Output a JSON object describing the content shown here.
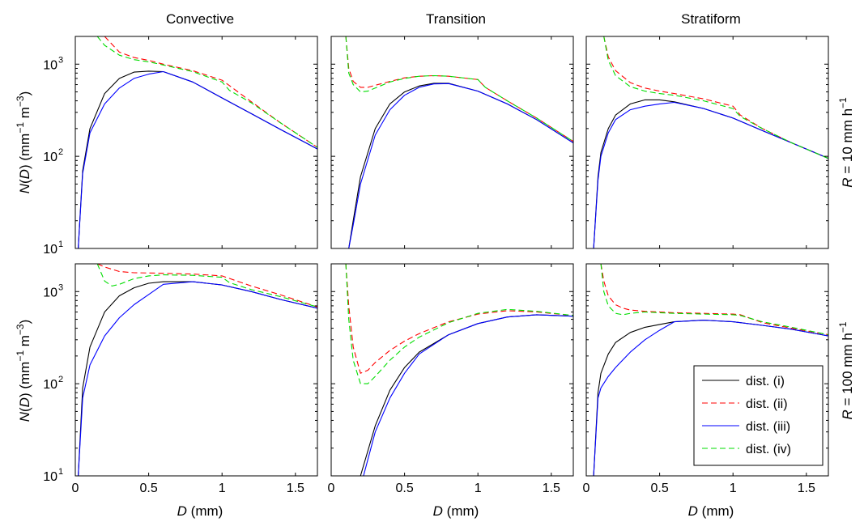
{
  "figure": {
    "columns": [
      "Convective",
      "Transition",
      "Stratiform"
    ],
    "rows": [
      {
        "label_italic": "R",
        "label_pre": " = 10 mm h",
        "label_sup": "−1"
      },
      {
        "label_italic": "R",
        "label_pre": " = 100 mm h",
        "label_sup": "−1"
      }
    ],
    "ylabel": {
      "italic_n": "N",
      "paren_open": "(",
      "italic_d": "D",
      "rest": ") (mm",
      "sup1": "−1",
      "mid": " m",
      "sup2": "−3",
      "close": ")"
    },
    "xlabel": {
      "italic": "D",
      "rest": " (mm)"
    },
    "x_ticks": [
      0,
      0.5,
      1,
      1.5
    ],
    "x_tick_labels": [
      "0",
      "0.5",
      "1",
      "1.5"
    ],
    "y_tick_base": "10",
    "y_tick_exps": [
      "1",
      "2",
      "3"
    ]
  },
  "chart_data": {
    "type": "line",
    "xlim": [
      0,
      1.65
    ],
    "ylim": [
      10,
      2000
    ],
    "yscale": "log",
    "grid": false,
    "legend_position": "bottom-right of Stratiform, R = 100 mm h−1 panel",
    "legend": [
      {
        "label": "dist. (i)",
        "color": "#000000",
        "dash": "solid"
      },
      {
        "label": "dist. (ii)",
        "color": "#ff0000",
        "dash": "dashed"
      },
      {
        "label": "dist. (iii)",
        "color": "#0000ff",
        "dash": "solid"
      },
      {
        "label": "dist. (iv)",
        "color": "#00dd00",
        "dash": "dashed"
      }
    ],
    "panels": [
      {
        "regime": "Convective",
        "R": "10 mm h−1",
        "series": [
          {
            "name": "dist. (i)",
            "x": [
              0.02,
              0.05,
              0.1,
              0.2,
              0.3,
              0.4,
              0.5,
              0.6,
              0.8,
              1.0,
              1.2,
              1.4,
              1.65
            ],
            "y": [
              10,
              70,
              200,
              480,
              700,
              820,
              840,
              830,
              640,
              430,
              290,
              195,
              120
            ]
          },
          {
            "name": "dist. (ii)",
            "x": [
              0.2,
              0.3,
              0.4,
              0.5,
              0.6,
              0.8,
              1.0,
              1.2,
              1.4,
              1.65
            ],
            "y": [
              2000,
              1350,
              1180,
              1100,
              1000,
              850,
              670,
              390,
              230,
              125
            ]
          },
          {
            "name": "dist. (iii)",
            "x": [
              0.02,
              0.05,
              0.1,
              0.2,
              0.3,
              0.4,
              0.5,
              0.6,
              0.8,
              1.0,
              1.2,
              1.4,
              1.65
            ],
            "y": [
              10,
              65,
              180,
              370,
              550,
              700,
              780,
              830,
              640,
              430,
              290,
              195,
              120
            ]
          },
          {
            "name": "dist. (iv)",
            "x": [
              0.15,
              0.2,
              0.3,
              0.4,
              0.5,
              0.6,
              0.8,
              1.0,
              1.05,
              1.2,
              1.4,
              1.65
            ],
            "y": [
              2000,
              1600,
              1250,
              1120,
              1060,
              980,
              830,
              640,
              520,
              380,
              230,
              125
            ]
          }
        ]
      },
      {
        "regime": "Transition",
        "R": "10 mm h−1",
        "series": [
          {
            "name": "dist. (i)",
            "x": [
              0.12,
              0.15,
              0.2,
              0.3,
              0.4,
              0.5,
              0.6,
              0.7,
              0.8,
              1.0,
              1.2,
              1.4,
              1.65
            ],
            "y": [
              10,
              20,
              60,
              200,
              370,
              500,
              580,
              620,
              620,
              510,
              370,
              250,
              140
            ]
          },
          {
            "name": "dist. (ii)",
            "x": [
              0.1,
              0.12,
              0.15,
              0.2,
              0.25,
              0.3,
              0.4,
              0.5,
              0.6,
              0.7,
              0.8,
              1.0,
              1.05,
              1.2,
              1.4,
              1.65
            ],
            "y": [
              2000,
              900,
              650,
              560,
              560,
              590,
              650,
              710,
              740,
              750,
              740,
              680,
              560,
              400,
              260,
              145
            ]
          },
          {
            "name": "dist. (iii)",
            "x": [
              0.12,
              0.15,
              0.2,
              0.3,
              0.4,
              0.5,
              0.6,
              0.7,
              0.8,
              1.0,
              1.2,
              1.4,
              1.65
            ],
            "y": [
              10,
              18,
              50,
              170,
              320,
              460,
              560,
              610,
              615,
              510,
              370,
              250,
              140
            ]
          },
          {
            "name": "dist. (iv)",
            "x": [
              0.1,
              0.12,
              0.15,
              0.2,
              0.25,
              0.3,
              0.4,
              0.5,
              0.6,
              0.7,
              0.8,
              1.0,
              1.05,
              1.2,
              1.4,
              1.65
            ],
            "y": [
              2000,
              800,
              600,
              500,
              510,
              550,
              640,
              700,
              740,
              750,
              740,
              680,
              560,
              400,
              260,
              145
            ]
          }
        ]
      },
      {
        "regime": "Stratiform",
        "R": "10 mm h−1",
        "series": [
          {
            "name": "dist. (i)",
            "x": [
              0.05,
              0.08,
              0.1,
              0.15,
              0.2,
              0.3,
              0.4,
              0.5,
              0.6,
              0.8,
              1.0,
              1.2,
              1.4,
              1.65
            ],
            "y": [
              10,
              60,
              110,
              200,
              280,
              370,
              410,
              410,
              390,
              330,
              260,
              190,
              140,
              95
            ]
          },
          {
            "name": "dist. (ii)",
            "x": [
              0.12,
              0.15,
              0.2,
              0.3,
              0.4,
              0.5,
              0.6,
              0.8,
              1.0,
              1.05,
              1.2,
              1.4,
              1.65
            ],
            "y": [
              2000,
              1200,
              850,
              630,
              550,
              510,
              480,
              420,
              350,
              280,
              200,
              140,
              95
            ]
          },
          {
            "name": "dist. (iii)",
            "x": [
              0.05,
              0.08,
              0.1,
              0.15,
              0.2,
              0.3,
              0.4,
              0.5,
              0.6,
              0.8,
              1.0,
              1.2,
              1.4,
              1.65
            ],
            "y": [
              10,
              55,
              100,
              180,
              250,
              320,
              350,
              370,
              385,
              330,
              260,
              190,
              140,
              95
            ]
          },
          {
            "name": "dist. (iv)",
            "x": [
              0.12,
              0.15,
              0.2,
              0.3,
              0.4,
              0.5,
              0.6,
              0.8,
              1.0,
              1.05,
              1.2,
              1.4,
              1.65
            ],
            "y": [
              2000,
              1100,
              750,
              570,
              510,
              480,
              460,
              400,
              330,
              270,
              200,
              140,
              95
            ]
          }
        ]
      },
      {
        "regime": "Convective",
        "R": "100 mm h−1",
        "series": [
          {
            "name": "dist. (i)",
            "x": [
              0.02,
              0.05,
              0.1,
              0.2,
              0.3,
              0.4,
              0.5,
              0.6,
              0.8,
              1.0,
              1.2,
              1.4,
              1.65
            ],
            "y": [
              10,
              90,
              250,
              600,
              900,
              1100,
              1230,
              1280,
              1280,
              1180,
              1000,
              820,
              660
            ]
          },
          {
            "name": "dist. (ii)",
            "x": [
              0.15,
              0.2,
              0.3,
              0.4,
              0.5,
              0.6,
              0.8,
              1.0,
              1.2,
              1.4,
              1.65
            ],
            "y": [
              2000,
              1850,
              1650,
              1600,
              1590,
              1580,
              1550,
              1480,
              1150,
              920,
              680
            ]
          },
          {
            "name": "dist. (iii)",
            "x": [
              0.02,
              0.05,
              0.1,
              0.2,
              0.3,
              0.4,
              0.5,
              0.6,
              0.8,
              1.0,
              1.2,
              1.4,
              1.65
            ],
            "y": [
              10,
              70,
              160,
              330,
              520,
              720,
              930,
              1200,
              1280,
              1180,
              1000,
              820,
              660
            ]
          },
          {
            "name": "dist. (iv)",
            "x": [
              0.15,
              0.2,
              0.25,
              0.3,
              0.4,
              0.5,
              0.6,
              0.8,
              1.0,
              1.05,
              1.2,
              1.4,
              1.65
            ],
            "y": [
              2000,
              1300,
              1150,
              1200,
              1380,
              1480,
              1520,
              1500,
              1430,
              1250,
              1050,
              880,
              680
            ]
          }
        ]
      },
      {
        "regime": "Transition",
        "R": "100 mm h−1",
        "series": [
          {
            "name": "dist. (i)",
            "x": [
              0.2,
              0.3,
              0.4,
              0.5,
              0.6,
              0.8,
              1.0,
              1.2,
              1.4,
              1.65
            ],
            "y": [
              10,
              35,
              85,
              150,
              220,
              340,
              450,
              530,
              560,
              540
            ]
          },
          {
            "name": "dist. (ii)",
            "x": [
              0.1,
              0.12,
              0.15,
              0.2,
              0.25,
              0.3,
              0.4,
              0.5,
              0.6,
              0.8,
              1.0,
              1.2,
              1.4,
              1.65
            ],
            "y": [
              2000,
              700,
              250,
              130,
              140,
              170,
              230,
              290,
              350,
              470,
              570,
              620,
              600,
              550
            ]
          },
          {
            "name": "dist. (iii)",
            "x": [
              0.22,
              0.3,
              0.4,
              0.5,
              0.6,
              0.8,
              1.0,
              1.2,
              1.4,
              1.65
            ],
            "y": [
              10,
              30,
              70,
              130,
              210,
              340,
              450,
              530,
              560,
              540
            ]
          },
          {
            "name": "dist. (iv)",
            "x": [
              0.1,
              0.12,
              0.15,
              0.2,
              0.25,
              0.3,
              0.4,
              0.5,
              0.6,
              0.8,
              1.0,
              1.2,
              1.4,
              1.65
            ],
            "y": [
              2000,
              500,
              180,
              100,
              100,
              120,
              180,
              250,
              320,
              460,
              580,
              640,
              610,
              550
            ]
          }
        ]
      },
      {
        "regime": "Stratiform",
        "R": "100 mm h−1",
        "series": [
          {
            "name": "dist. (i)",
            "x": [
              0.05,
              0.08,
              0.1,
              0.15,
              0.2,
              0.3,
              0.4,
              0.5,
              0.6,
              0.8,
              1.0,
              1.2,
              1.4,
              1.65
            ],
            "y": [
              10,
              80,
              130,
              210,
              280,
              360,
              410,
              440,
              470,
              490,
              470,
              430,
              390,
              330
            ]
          },
          {
            "name": "dist. (ii)",
            "x": [
              0.1,
              0.12,
              0.15,
              0.2,
              0.25,
              0.3,
              0.4,
              0.5,
              0.6,
              0.8,
              1.0,
              1.05,
              1.2,
              1.4,
              1.65
            ],
            "y": [
              2000,
              1300,
              900,
              720,
              660,
              630,
              610,
              600,
              590,
              580,
              570,
              560,
              460,
              400,
              340
            ]
          },
          {
            "name": "dist. (iii)",
            "x": [
              0.05,
              0.08,
              0.1,
              0.15,
              0.2,
              0.3,
              0.4,
              0.5,
              0.6,
              0.8,
              1.0,
              1.2,
              1.4,
              1.65
            ],
            "y": [
              10,
              70,
              90,
              120,
              150,
              220,
              300,
              380,
              470,
              490,
              470,
              430,
              390,
              330
            ]
          },
          {
            "name": "dist. (iv)",
            "x": [
              0.1,
              0.12,
              0.15,
              0.2,
              0.25,
              0.3,
              0.4,
              0.5,
              0.6,
              0.8,
              1.0,
              1.05,
              1.2,
              1.4,
              1.65
            ],
            "y": [
              2000,
              1000,
              700,
              580,
              560,
              580,
              600,
              590,
              580,
              570,
              560,
              550,
              470,
              410,
              340
            ]
          }
        ]
      }
    ]
  }
}
